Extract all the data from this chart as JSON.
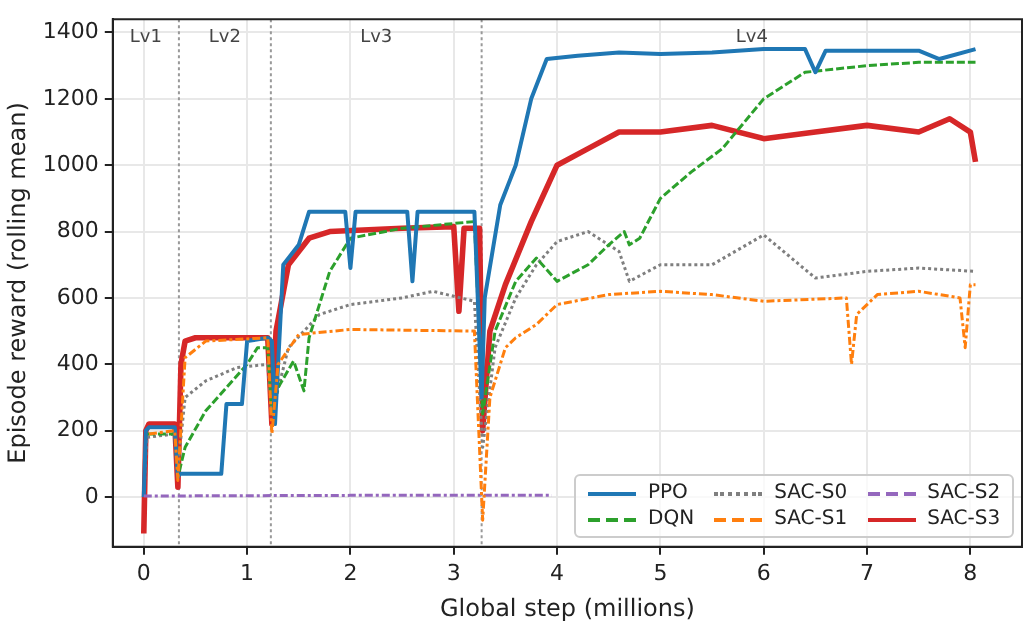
{
  "chart_data": {
    "type": "line",
    "xlabel": "Global step (millions)",
    "ylabel": "Episode reward (rolling mean)",
    "xlim": [
      -0.3,
      8.5
    ],
    "xticks": [
      0,
      1,
      2,
      3,
      4,
      5,
      6,
      7,
      8
    ],
    "ylim": [
      -150,
      1440
    ],
    "yticks": [
      0,
      200,
      400,
      600,
      800,
      1000,
      1200,
      1400
    ],
    "grid": true,
    "legend": "bottom right",
    "marker": "none",
    "ref_lines": [
      {
        "axis": "x",
        "value": 0.34,
        "color": "#999999",
        "line_style": "dotted"
      },
      {
        "axis": "x",
        "value": 1.23,
        "color": "#999999",
        "line_style": "dotted"
      },
      {
        "axis": "x",
        "value": 3.27,
        "color": "#999999",
        "line_style": "dotted"
      }
    ],
    "annotations": [
      "Lv1",
      "Lv2",
      "Lv3",
      "Lv4"
    ],
    "series": [
      {
        "name": "PPO",
        "color": "#1f77b4",
        "line_style": "solid",
        "x": [
          0,
          0.02,
          0.05,
          0.3,
          0.33,
          0.35,
          0.7,
          0.75,
          0.8,
          0.95,
          1.0,
          1.2,
          1.24,
          1.27,
          1.35,
          1.5,
          1.6,
          1.95,
          2.0,
          2.05,
          2.55,
          2.6,
          2.65,
          3.2,
          3.27,
          3.3,
          3.45,
          3.6,
          3.75,
          3.9,
          4.2,
          4.6,
          5,
          5.5,
          6,
          6.4,
          6.5,
          6.6,
          7,
          7.5,
          7.7,
          8.05
        ],
        "values": [
          0,
          200,
          210,
          210,
          60,
          70,
          70,
          70,
          280,
          280,
          470,
          480,
          470,
          220,
          700,
          760,
          860,
          860,
          690,
          860,
          860,
          650,
          860,
          860,
          300,
          600,
          880,
          1000,
          1200,
          1320,
          1330,
          1340,
          1335,
          1340,
          1350,
          1350,
          1280,
          1345,
          1345,
          1345,
          1320,
          1350
        ]
      },
      {
        "name": "DQN",
        "color": "#2ca02c",
        "line_style": "dashed",
        "x": [
          0.03,
          0.3,
          0.33,
          0.4,
          0.6,
          0.8,
          1.0,
          1.1,
          1.2,
          1.24,
          1.3,
          1.45,
          1.55,
          1.6,
          1.8,
          2.0,
          2.5,
          3.2,
          3.28,
          3.4,
          3.6,
          3.8,
          4.0,
          4.3,
          4.5,
          4.65,
          4.7,
          4.8,
          5.0,
          5.3,
          5.6,
          6.0,
          6.4,
          7.0,
          7.5,
          8.05
        ],
        "values": [
          190,
          190,
          60,
          150,
          260,
          330,
          400,
          450,
          450,
          250,
          330,
          410,
          320,
          480,
          680,
          780,
          810,
          830,
          250,
          500,
          650,
          720,
          650,
          700,
          760,
          800,
          760,
          780,
          900,
          980,
          1050,
          1200,
          1280,
          1300,
          1310,
          1310
        ]
      },
      {
        "name": "SAC-S0",
        "color": "#7f7f7f",
        "line_style": "dotted",
        "x": [
          0,
          0.03,
          0.3,
          0.33,
          0.4,
          0.6,
          0.9,
          1.2,
          1.24,
          1.4,
          1.7,
          2.0,
          2.5,
          2.8,
          3.2,
          3.28,
          3.4,
          3.6,
          3.8,
          4.0,
          4.3,
          4.6,
          4.7,
          5.0,
          5.5,
          6.0,
          6.5,
          7.0,
          7.5,
          8.05
        ],
        "values": [
          0,
          180,
          190,
          90,
          300,
          350,
          390,
          400,
          250,
          450,
          550,
          580,
          600,
          620,
          590,
          150,
          450,
          600,
          700,
          770,
          800,
          740,
          650,
          700,
          700,
          790,
          660,
          680,
          690,
          680
        ]
      },
      {
        "name": "SAC-S1",
        "color": "#ff7f0e",
        "line_style": "dashdot",
        "x": [
          0.05,
          0.3,
          0.33,
          0.4,
          0.6,
          1.2,
          1.24,
          1.3,
          1.5,
          2.0,
          3.2,
          3.28,
          3.35,
          3.5,
          3.6,
          3.8,
          4.0,
          4.5,
          5.0,
          5.5,
          6.0,
          6.8,
          6.85,
          6.9,
          7.1,
          7.5,
          7.9,
          7.95,
          8.0,
          8.05
        ],
        "values": [
          190,
          200,
          50,
          420,
          470,
          480,
          190,
          400,
          490,
          505,
          500,
          -70,
          300,
          450,
          480,
          520,
          580,
          610,
          620,
          610,
          590,
          600,
          400,
          550,
          610,
          620,
          600,
          450,
          640,
          640
        ]
      },
      {
        "name": "SAC-S2",
        "color": "#9467bd",
        "line_style": "dashdot",
        "x": [
          0,
          2,
          3.95
        ],
        "values": [
          3,
          5,
          5
        ]
      },
      {
        "name": "SAC-S3",
        "color": "#d62728",
        "line_style": "solid",
        "x": [
          0,
          0.02,
          0.05,
          0.3,
          0.33,
          0.36,
          0.4,
          0.5,
          1.2,
          1.24,
          1.28,
          1.4,
          1.6,
          1.8,
          2.5,
          3.0,
          3.05,
          3.1,
          3.15,
          3.25,
          3.28,
          3.35,
          3.5,
          3.75,
          4.0,
          4.3,
          4.6,
          5,
          5.5,
          6,
          6.5,
          7,
          7.5,
          7.8,
          8,
          8.05
        ],
        "values": [
          -110,
          200,
          220,
          220,
          30,
          400,
          470,
          480,
          480,
          220,
          500,
          700,
          780,
          800,
          810,
          815,
          560,
          810,
          810,
          810,
          200,
          500,
          640,
          830,
          1000,
          1050,
          1100,
          1100,
          1120,
          1080,
          1100,
          1120,
          1100,
          1140,
          1100,
          1010
        ]
      }
    ]
  }
}
